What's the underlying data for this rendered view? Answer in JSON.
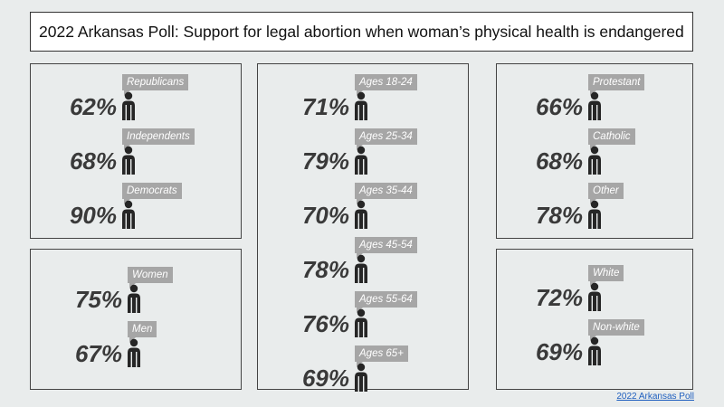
{
  "title": "2022 Arkansas Poll: Support for legal abortion when woman’s physical health is endangered",
  "footer_link": "2022 Arkansas Poll",
  "colors": {
    "tag": "#a6a6a6",
    "figure": "#262626",
    "percent": "#3a3a3a"
  },
  "chart_data": [
    {
      "type": "table",
      "group": "party",
      "items": [
        {
          "label": "Republicans",
          "value": "62%"
        },
        {
          "label": "Independents",
          "value": "68%"
        },
        {
          "label": "Democrats",
          "value": "90%"
        }
      ]
    },
    {
      "type": "table",
      "group": "gender",
      "items": [
        {
          "label": "Women",
          "value": "75%"
        },
        {
          "label": "Men",
          "value": "67%"
        }
      ]
    },
    {
      "type": "table",
      "group": "age",
      "items": [
        {
          "label": "Ages 18-24",
          "value": "71%"
        },
        {
          "label": "Ages 25-34",
          "value": "79%"
        },
        {
          "label": "Ages 35-44",
          "value": "70%"
        },
        {
          "label": "Ages 45-54",
          "value": "78%"
        },
        {
          "label": "Ages 55-64",
          "value": "76%"
        },
        {
          "label": "Ages 65+",
          "value": "69%"
        }
      ]
    },
    {
      "type": "table",
      "group": "religion",
      "items": [
        {
          "label": "Protestant",
          "value": "66%"
        },
        {
          "label": "Catholic",
          "value": "68%"
        },
        {
          "label": "Other",
          "value": "78%"
        }
      ]
    },
    {
      "type": "table",
      "group": "race",
      "items": [
        {
          "label": "White",
          "value": "72%"
        },
        {
          "label": "Non-white",
          "value": "69%"
        }
      ]
    }
  ]
}
